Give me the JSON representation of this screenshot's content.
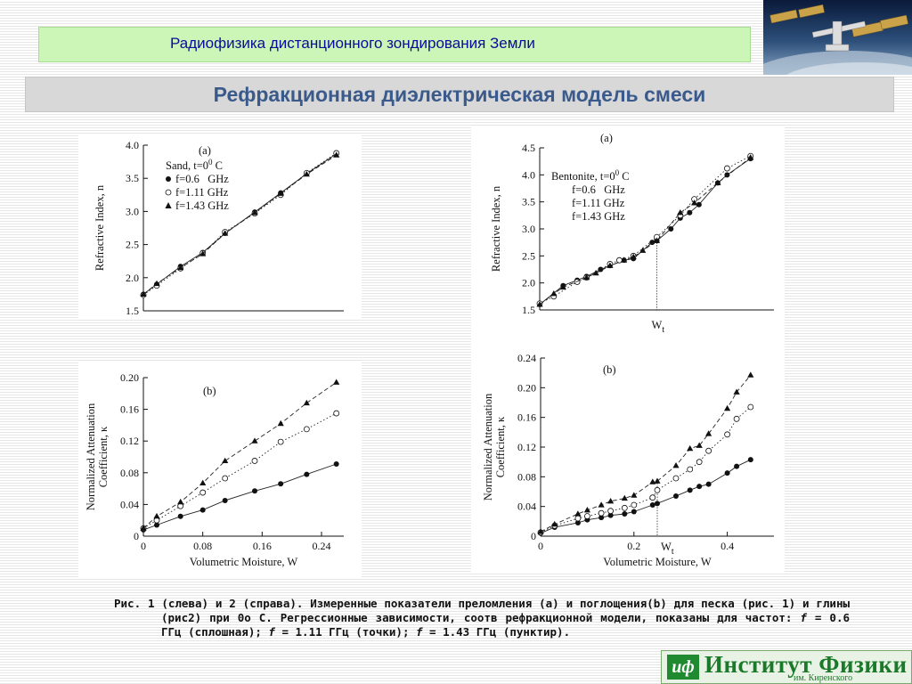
{
  "header": {
    "course_title": "Радиофизика дистанционного зондирования Земли",
    "slide_title": "Рефракционная диэлектрическая модель смеси"
  },
  "colors": {
    "header_bg": "#ccf5b8",
    "header_text": "#0b0b9a",
    "title_bar_bg": "#d8d8d8",
    "title_text": "#3a5a8c",
    "logo_green": "#1a7a2a"
  },
  "photo": {
    "icon": "space-station-image"
  },
  "chart_data": [
    {
      "id": "sand-refractive",
      "type": "scatter",
      "panel_label": "(a)",
      "legend_header": "Sand, t=0",
      "legend_header_sup": "0",
      "legend_header_unit": " C",
      "xlabel": "",
      "ylabel": "Refractive Index, n",
      "xlim": [
        0,
        0.27
      ],
      "ylim": [
        1.5,
        4.0
      ],
      "yticks": [
        "1.5",
        "2.0",
        "2.5",
        "3.0",
        "3.5",
        "4.0"
      ],
      "ytick_values": [
        1.5,
        2.0,
        2.5,
        3.0,
        3.5,
        4.0
      ],
      "series": [
        {
          "name": "f=0.6   GHz",
          "marker": "filled-circle",
          "line": "solid",
          "x": [
            0,
            0.018,
            0.05,
            0.08,
            0.11,
            0.15,
            0.185,
            0.22,
            0.26
          ],
          "y": [
            1.75,
            1.9,
            2.17,
            2.38,
            2.67,
            2.99,
            3.28,
            3.57,
            3.87
          ]
        },
        {
          "name": "f=1.11 GHz",
          "marker": "open-circle",
          "line": "dotted",
          "x": [
            0,
            0.018,
            0.05,
            0.08,
            0.11,
            0.15,
            0.185,
            0.22,
            0.26
          ],
          "y": [
            1.74,
            1.88,
            2.14,
            2.37,
            2.69,
            2.97,
            3.25,
            3.58,
            3.88
          ]
        },
        {
          "name": "f=1.43 GHz",
          "marker": "filled-triangle",
          "line": "dashed",
          "x": [
            0,
            0.018,
            0.05,
            0.08,
            0.11,
            0.15,
            0.185,
            0.22,
            0.26
          ],
          "y": [
            1.75,
            1.91,
            2.15,
            2.36,
            2.67,
            2.98,
            3.27,
            3.56,
            3.85
          ]
        }
      ]
    },
    {
      "id": "bentonite-refractive",
      "type": "scatter",
      "panel_label": "(a)",
      "legend_header": "Bentonite, t=0",
      "legend_header_sup": "0",
      "legend_header_unit": " C",
      "xlabel": "",
      "ylabel": "Refractive Index, n",
      "xlim": [
        0,
        0.5
      ],
      "ylim": [
        1.5,
        4.5
      ],
      "yticks": [
        "1.5",
        "2.0",
        "2.5",
        "3.0",
        "3.5",
        "4.0",
        "4.5"
      ],
      "ytick_values": [
        1.5,
        2.0,
        2.5,
        3.0,
        3.5,
        4.0,
        4.5
      ],
      "marker_label": "W",
      "marker_label_sub": "t",
      "wt": 0.25,
      "series": [
        {
          "name": "f=0.6   GHz",
          "marker": "filled-circle",
          "line": "solid",
          "x": [
            0,
            0.05,
            0.08,
            0.1,
            0.13,
            0.15,
            0.18,
            0.2,
            0.24,
            0.25,
            0.28,
            0.3,
            0.32,
            0.34,
            0.38,
            0.4,
            0.45
          ],
          "y": [
            1.6,
            1.95,
            2.05,
            2.12,
            2.25,
            2.32,
            2.42,
            2.45,
            2.75,
            2.78,
            3.0,
            3.2,
            3.3,
            3.45,
            3.85,
            4.0,
            4.3
          ]
        },
        {
          "name": "f=1.11 GHz",
          "marker": "open-circle",
          "line": "dotted",
          "x": [
            0,
            0.03,
            0.08,
            0.1,
            0.15,
            0.17,
            0.2,
            0.25,
            0.3,
            0.33,
            0.4,
            0.45
          ],
          "y": [
            1.62,
            1.75,
            2.02,
            2.1,
            2.35,
            2.42,
            2.5,
            2.85,
            3.25,
            3.55,
            4.12,
            4.35
          ]
        },
        {
          "name": "f=1.43 GHz",
          "marker": "filled-triangle",
          "line": "dashed",
          "x": [
            0,
            0.03,
            0.05,
            0.1,
            0.12,
            0.15,
            0.18,
            0.2,
            0.22,
            0.25,
            0.3,
            0.33,
            0.38,
            0.45
          ],
          "y": [
            1.6,
            1.8,
            1.92,
            2.1,
            2.18,
            2.32,
            2.42,
            2.48,
            2.6,
            2.78,
            3.3,
            3.48,
            3.85,
            4.32
          ]
        }
      ]
    },
    {
      "id": "sand-attenuation",
      "type": "scatter",
      "panel_label": "(b)",
      "xlabel": "Volumetric Moisture, W",
      "ylabel": "Normalized Attenuation",
      "ylabel2": "Coefficient, κ",
      "xlim": [
        0,
        0.27
      ],
      "ylim": [
        0,
        0.2
      ],
      "xticks": [
        "0",
        "0.08",
        "0.16",
        "0.24"
      ],
      "xtick_values": [
        0,
        0.08,
        0.16,
        0.24
      ],
      "yticks": [
        "0",
        "0.04",
        "0.08",
        "0.12",
        "0.16",
        "0.20"
      ],
      "ytick_values": [
        0,
        0.04,
        0.08,
        0.12,
        0.16,
        0.2
      ],
      "series": [
        {
          "name": "f=0.6   GHz",
          "marker": "filled-circle",
          "line": "solid",
          "x": [
            0,
            0.018,
            0.05,
            0.08,
            0.11,
            0.15,
            0.185,
            0.22,
            0.26
          ],
          "y": [
            0.008,
            0.014,
            0.025,
            0.033,
            0.045,
            0.057,
            0.066,
            0.078,
            0.091
          ]
        },
        {
          "name": "f=1.11 GHz",
          "marker": "open-circle",
          "line": "dotted",
          "x": [
            0,
            0.018,
            0.05,
            0.08,
            0.11,
            0.15,
            0.185,
            0.22,
            0.26
          ],
          "y": [
            0.01,
            0.02,
            0.038,
            0.055,
            0.073,
            0.095,
            0.119,
            0.135,
            0.155
          ]
        },
        {
          "name": "f=1.43 GHz",
          "marker": "filled-triangle",
          "line": "dashed",
          "x": [
            0,
            0.018,
            0.05,
            0.08,
            0.11,
            0.15,
            0.185,
            0.22,
            0.26
          ],
          "y": [
            0.01,
            0.025,
            0.043,
            0.067,
            0.095,
            0.12,
            0.142,
            0.168,
            0.194
          ]
        }
      ]
    },
    {
      "id": "bentonite-attenuation",
      "type": "scatter",
      "panel_label": "(b)",
      "xlabel": "Volumetric Moisture, W",
      "ylabel": "Normalized Attenuation",
      "ylabel2": "Coefficient, κ",
      "xlim": [
        0,
        0.5
      ],
      "ylim": [
        0,
        0.24
      ],
      "xticks": [
        "0",
        "0.2",
        "0.4"
      ],
      "xtick_values": [
        0,
        0.2,
        0.4
      ],
      "yticks": [
        "0",
        "0.04",
        "0.08",
        "0.12",
        "0.16",
        "0.20",
        "0.24"
      ],
      "ytick_values": [
        0,
        0.04,
        0.08,
        0.12,
        0.16,
        0.2,
        0.24
      ],
      "marker_label": "W",
      "marker_label_sub": "t",
      "wt": 0.25,
      "series": [
        {
          "name": "f=0.6   GHz",
          "marker": "filled-circle",
          "line": "solid",
          "x": [
            0,
            0.03,
            0.08,
            0.1,
            0.13,
            0.15,
            0.18,
            0.2,
            0.24,
            0.25,
            0.29,
            0.32,
            0.34,
            0.36,
            0.4,
            0.42,
            0.45
          ],
          "y": [
            0.004,
            0.012,
            0.018,
            0.022,
            0.025,
            0.028,
            0.03,
            0.033,
            0.042,
            0.044,
            0.054,
            0.062,
            0.067,
            0.07,
            0.085,
            0.094,
            0.103
          ]
        },
        {
          "name": "f=1.11 GHz",
          "marker": "open-circle",
          "line": "dotted",
          "x": [
            0,
            0.03,
            0.08,
            0.1,
            0.13,
            0.15,
            0.18,
            0.2,
            0.24,
            0.25,
            0.29,
            0.32,
            0.34,
            0.36,
            0.4,
            0.42,
            0.45
          ],
          "y": [
            0.005,
            0.014,
            0.024,
            0.027,
            0.031,
            0.034,
            0.038,
            0.042,
            0.052,
            0.062,
            0.078,
            0.09,
            0.1,
            0.115,
            0.137,
            0.158,
            0.174
          ]
        },
        {
          "name": "f=1.43 GHz",
          "marker": "filled-triangle",
          "line": "dashed",
          "x": [
            0,
            0.03,
            0.08,
            0.1,
            0.13,
            0.15,
            0.18,
            0.2,
            0.24,
            0.25,
            0.29,
            0.32,
            0.34,
            0.36,
            0.4,
            0.42,
            0.45
          ],
          "y": [
            0.006,
            0.016,
            0.03,
            0.035,
            0.042,
            0.047,
            0.051,
            0.055,
            0.073,
            0.074,
            0.095,
            0.118,
            0.122,
            0.138,
            0.172,
            0.194,
            0.217
          ]
        }
      ]
    }
  ],
  "caption": {
    "lead": "Рис. 1 (слева) и 2 (справа). Измеренные показатели преломления (а) и поглощения(b) для песка (рис. 1) и глины (рис2) при 0о С. Регрессионные зависимости, соотв рефракционной модели, показаны для частот: ",
    "f_symbol": "f",
    "part2": " = 0.6 ГГц (сплошная); ",
    "part3": " = 1.11 ГГц (точки); ",
    "part4": " = 1.43 ГГц (пунктир)."
  },
  "logo": {
    "mark": "иф",
    "name": "Институт Физики",
    "sub": "им. Киренского"
  }
}
